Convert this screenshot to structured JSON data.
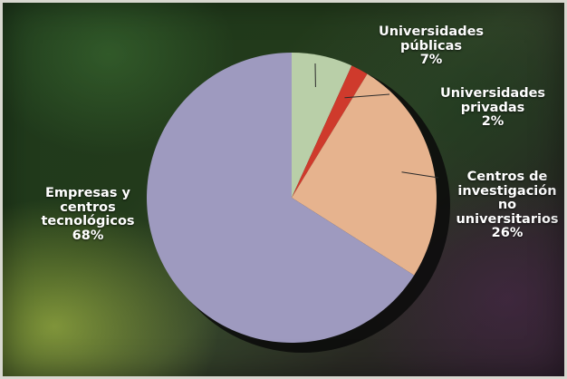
{
  "chart_data": {
    "type": "pie",
    "title": "",
    "slices": [
      {
        "label_lines": [
          "Universidades",
          "públicas"
        ],
        "percent_label": "7%",
        "value": 7,
        "color": "#b9cfa8"
      },
      {
        "label_lines": [
          "Universidades",
          "privadas"
        ],
        "percent_label": "2%",
        "value": 2,
        "color": "#cf3a2c"
      },
      {
        "label_lines": [
          "Centros de",
          "investigación",
          "no",
          "universitarios"
        ],
        "percent_label": "26%",
        "value": 26,
        "color": "#e6b38e"
      },
      {
        "label_lines": [
          "Empresas y",
          "centros",
          "tecnológicos"
        ],
        "percent_label": "68%",
        "value": 68,
        "color": "#9e9abf"
      }
    ],
    "legend": "none",
    "start_angle_deg": 0,
    "direction": "clockwise"
  }
}
